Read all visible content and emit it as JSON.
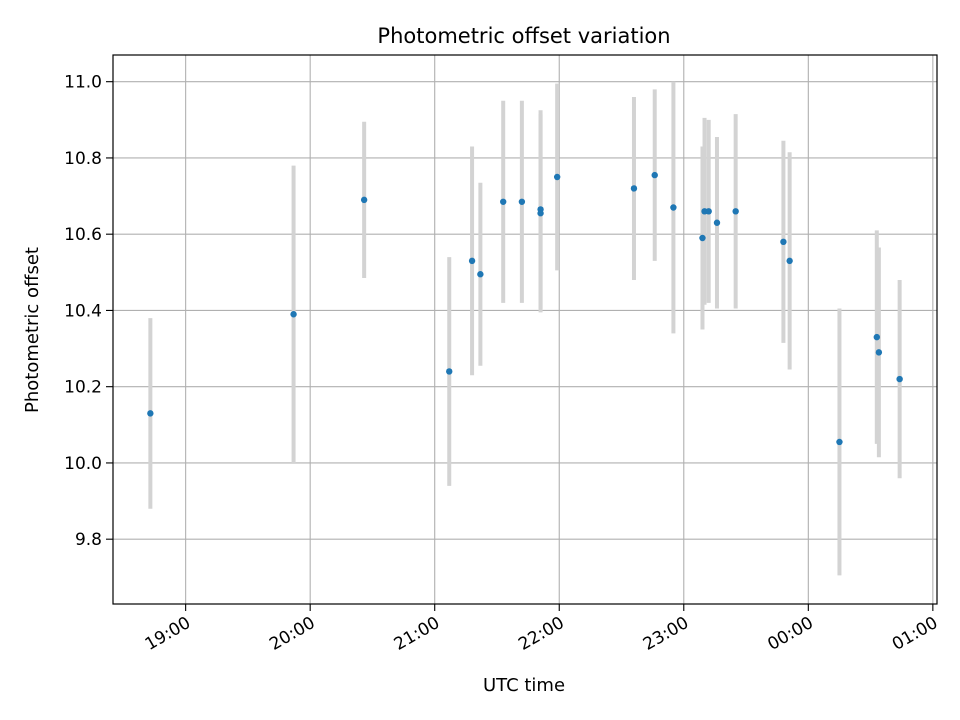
{
  "chart_data": {
    "type": "scatter",
    "title": "Photometric offset variation",
    "xlabel": "UTC time",
    "ylabel": "Photometric offset",
    "x_ticks": [
      "19:00",
      "20:00",
      "21:00",
      "22:00",
      "23:00",
      "00:00",
      "01:00"
    ],
    "y_ticks": [
      "9.8",
      "10.0",
      "10.2",
      "10.4",
      "10.6",
      "10.8",
      "11.0"
    ],
    "xlim": [
      "18:25",
      "01:02"
    ],
    "ylim": [
      9.63,
      11.07
    ],
    "grid": true,
    "colors": {
      "point": "#1f77b4",
      "errorbar": "#d3d3d3",
      "grid": "#b0b0b0"
    },
    "points": [
      {
        "t": "18:43",
        "y": 10.13,
        "yerr": 0.25
      },
      {
        "t": "19:52",
        "y": 10.39,
        "yerr": 0.39
      },
      {
        "t": "20:26",
        "y": 10.69,
        "yerr": 0.205
      },
      {
        "t": "21:07",
        "y": 10.24,
        "yerr": 0.3
      },
      {
        "t": "21:18",
        "y": 10.53,
        "yerr": 0.3
      },
      {
        "t": "21:22",
        "y": 10.495,
        "yerr": 0.24
      },
      {
        "t": "21:33",
        "y": 10.685,
        "yerr": 0.265
      },
      {
        "t": "21:42",
        "y": 10.685,
        "yerr": 0.265
      },
      {
        "t": "21:51",
        "y": 10.665,
        "yerr": 0.26
      },
      {
        "t": "21:51",
        "y": 10.655,
        "yerr": 0.26
      },
      {
        "t": "21:59",
        "y": 10.75,
        "yerr": 0.245
      },
      {
        "t": "22:36",
        "y": 10.72,
        "yerr": 0.24
      },
      {
        "t": "22:46",
        "y": 10.755,
        "yerr": 0.225
      },
      {
        "t": "22:55",
        "y": 10.67,
        "yerr": 0.33
      },
      {
        "t": "23:09",
        "y": 10.59,
        "yerr": 0.24
      },
      {
        "t": "23:10",
        "y": 10.66,
        "yerr": 0.245
      },
      {
        "t": "23:12",
        "y": 10.66,
        "yerr": 0.24
      },
      {
        "t": "23:16",
        "y": 10.63,
        "yerr": 0.225
      },
      {
        "t": "23:25",
        "y": 10.66,
        "yerr": 0.255
      },
      {
        "t": "23:48",
        "y": 10.58,
        "yerr": 0.265
      },
      {
        "t": "23:51",
        "y": 10.53,
        "yerr": 0.285
      },
      {
        "t": "00:15",
        "y": 10.055,
        "yerr": 0.35
      },
      {
        "t": "00:33",
        "y": 10.33,
        "yerr": 0.28
      },
      {
        "t": "00:34",
        "y": 10.29,
        "yerr": 0.275
      },
      {
        "t": "00:44",
        "y": 10.22,
        "yerr": 0.26
      }
    ]
  }
}
